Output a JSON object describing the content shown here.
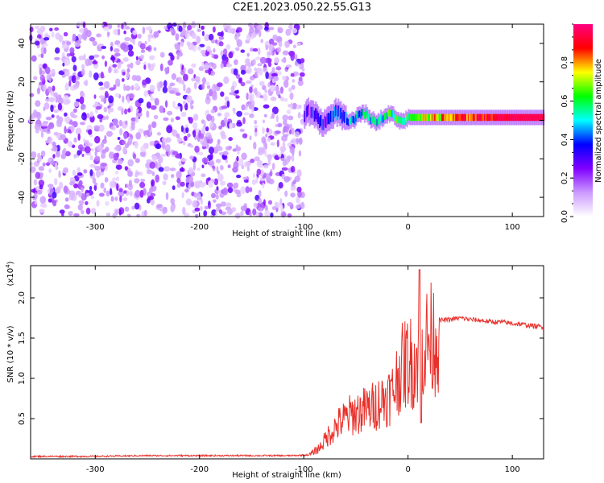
{
  "page": {
    "title": "C2E1.2023.050.22.55.G13"
  },
  "chart_data": [
    {
      "type": "heatmap",
      "name": "spectrogram",
      "xlabel": "Height of straight line (km)",
      "ylabel": "Frequency (Hz)",
      "xlim": [
        -362,
        130
      ],
      "ylim": [
        -50,
        50
      ],
      "xticks": [
        -300,
        -200,
        -100,
        0,
        100
      ],
      "yticks": [
        -40,
        -20,
        0,
        20,
        40
      ],
      "grid": false,
      "colorbar": {
        "label": "Normalized spectral amplitude",
        "range": [
          0,
          1
        ],
        "ticks": [
          "0.0",
          "0.2",
          "0.4",
          "0.6",
          "0.8"
        ],
        "colors": [
          "#ffffff",
          "#cc99ff",
          "#8000ff",
          "#0000ff",
          "#00ffff",
          "#00ff00",
          "#ffff00",
          "#ff0000",
          "#ff0080"
        ]
      },
      "regions": [
        {
          "x_range": [
            -362,
            -100
          ],
          "freq_range": [
            -50,
            50
          ],
          "description_level": 0.15
        },
        {
          "x_range": [
            -100,
            130
          ],
          "center_freq": 1.5,
          "band_width_hz": 4,
          "level_at_end": 0.95
        }
      ]
    },
    {
      "type": "line",
      "name": "snr",
      "xlabel": "Height of straight line (km)",
      "ylabel": "SNR (10 * v/v)",
      "yscale_label": "(x10",
      "yscale_exp": "4",
      "yscale_close": ")",
      "xlim": [
        -362,
        130
      ],
      "ylim": [
        0,
        2.4
      ],
      "xticks": [
        -300,
        -200,
        -100,
        0,
        100
      ],
      "yticks": [
        0.5,
        1.0,
        1.5,
        2.0
      ],
      "ytick_labels": [
        "0.5",
        "1.0",
        "1.5",
        "2.0"
      ],
      "color": "#e8302a",
      "series": [
        {
          "x": [
            -362,
            -300,
            -250,
            -200,
            -150,
            -110,
            -95,
            -85,
            -75,
            -65,
            -55,
            -45,
            -35,
            -25,
            -15,
            -8,
            0,
            5,
            10,
            11,
            13,
            18,
            25,
            30,
            40,
            50,
            60,
            70,
            80,
            90,
            100,
            110,
            120,
            130
          ],
          "y": [
            0.03,
            0.03,
            0.04,
            0.04,
            0.04,
            0.04,
            0.05,
            0.15,
            0.35,
            0.5,
            0.6,
            0.65,
            0.7,
            0.8,
            0.9,
            1.2,
            1.35,
            1.3,
            1.4,
            2.4,
            1.5,
            1.6,
            1.65,
            1.72,
            1.73,
            1.75,
            1.73,
            1.72,
            1.7,
            1.7,
            1.68,
            1.67,
            1.65,
            1.64
          ]
        }
      ]
    }
  ]
}
